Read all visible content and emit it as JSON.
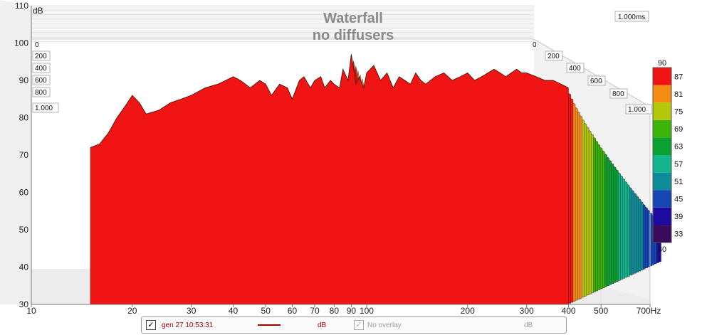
{
  "chart_data": {
    "type": "waterfall",
    "title": [
      "Waterfall",
      "no diffusers"
    ],
    "xlabel": "Hz",
    "ylabel": "dB",
    "x_scale": "log",
    "xlim": [
      10,
      700
    ],
    "ylim": [
      30,
      110
    ],
    "x_ticks": [
      10,
      20,
      30,
      40,
      50,
      60,
      70,
      80,
      90,
      100,
      200,
      300,
      400,
      500,
      700
    ],
    "x_tick_labels": [
      "10",
      "20",
      "30",
      "40",
      "50",
      "60",
      "70",
      "80",
      "90",
      "100",
      "200",
      "300",
      "400",
      "500",
      "700Hz"
    ],
    "y_ticks": [
      30,
      40,
      50,
      60,
      70,
      80,
      90,
      100,
      110
    ],
    "time_label": "1.000ms",
    "time_ticks_left": [
      "0",
      "200",
      "400",
      "600",
      "800",
      "1.000"
    ],
    "time_ticks_right": [
      "0",
      "200",
      "400",
      "600",
      "800",
      "1.000"
    ],
    "colorbar": {
      "min": 30,
      "max": 90,
      "labels": [
        "33",
        "39",
        "45",
        "51",
        "57",
        "63",
        "69",
        "75",
        "81",
        "87"
      ],
      "colors": [
        "#3c0a5a",
        "#1e0aa0",
        "#1646b4",
        "#0f8c9a",
        "#14b48c",
        "#0aa032",
        "#3cb40a",
        "#b4c80a",
        "#f58c14",
        "#f01414"
      ]
    },
    "front_curve": {
      "x": [
        15,
        16,
        17,
        18,
        19,
        20,
        21,
        22,
        24,
        26,
        28,
        30,
        33,
        36,
        38,
        40,
        42,
        45,
        48,
        50,
        52,
        55,
        58,
        60,
        63,
        65,
        68,
        70,
        73,
        75,
        78,
        80,
        83,
        85,
        88,
        90,
        93,
        95,
        98,
        100,
        105,
        110,
        115,
        120,
        125,
        130,
        135,
        140,
        145,
        150,
        160,
        170,
        180,
        190,
        200,
        210,
        220,
        230,
        240,
        250,
        260,
        270,
        280,
        290,
        300,
        320,
        340,
        360,
        380,
        400
      ],
      "y": [
        72,
        73,
        76,
        80,
        83,
        86,
        84,
        81,
        82,
        84,
        85,
        86,
        88,
        89,
        90,
        91,
        90,
        88,
        90,
        89,
        86,
        89,
        88,
        85,
        90,
        91,
        88,
        90,
        91,
        88,
        90,
        89,
        88,
        93,
        90,
        97,
        89,
        91,
        88,
        92,
        94,
        90,
        92,
        88,
        91,
        90,
        89,
        92,
        90,
        89,
        91,
        92,
        90,
        91,
        92,
        90,
        91,
        92,
        93,
        92,
        91,
        92,
        93,
        92,
        92,
        91,
        90,
        90,
        89,
        88
      ]
    }
  },
  "legend": {
    "item1_checked": "✓",
    "item1_label": "gen 27 10:53:31",
    "item1_unit": "dB",
    "item1_color": "#a00000",
    "item2_checked": "✓",
    "item2_label": "No overlay",
    "item2_unit": "dB"
  }
}
